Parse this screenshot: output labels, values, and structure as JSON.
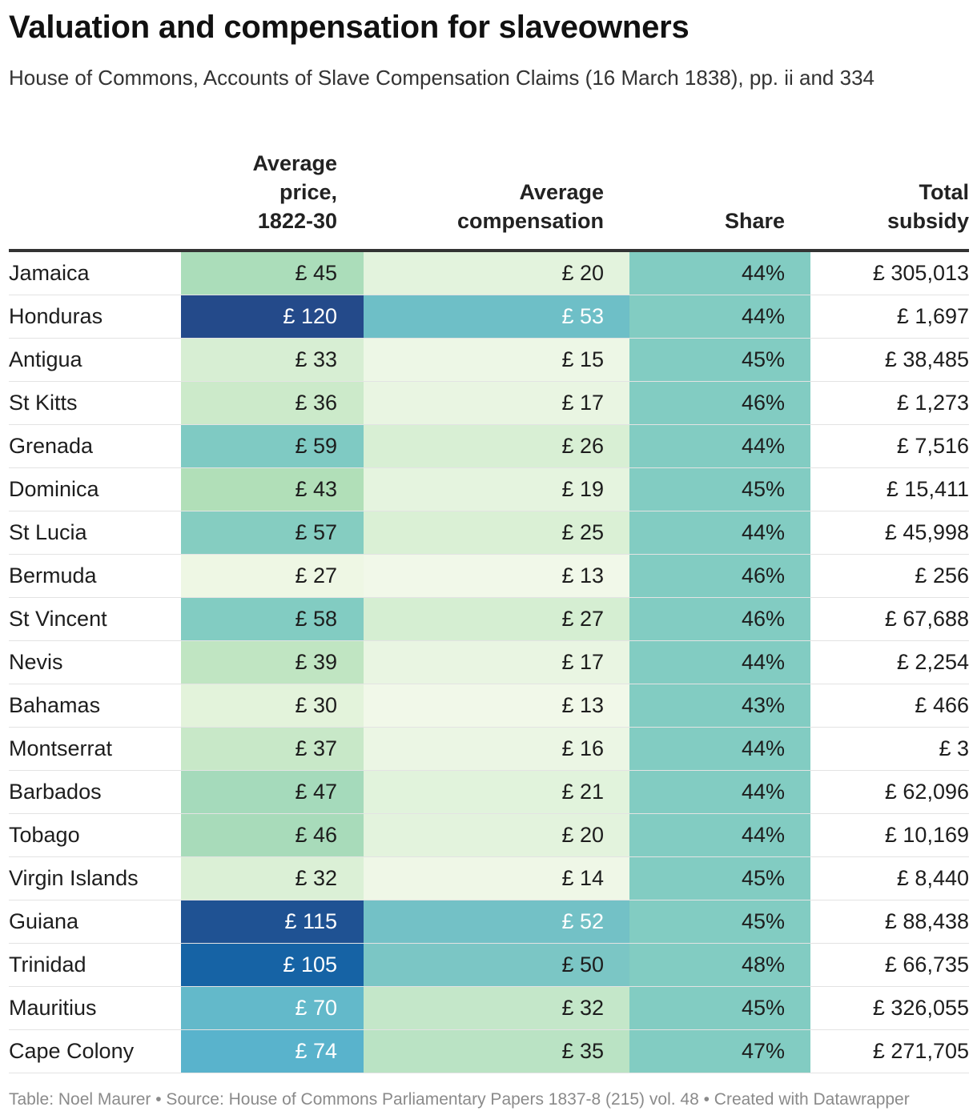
{
  "header": {
    "title": "Valuation and compensation for slaveowners",
    "subtitle": "House of Commons, Accounts of Slave Compensation Claims (16 March 1838), pp. ii and 334"
  },
  "chart_data": {
    "type": "table",
    "columns": [
      {
        "key": "country",
        "label": ""
      },
      {
        "key": "price",
        "label": "Average price, 1822-30",
        "lines": [
          "Average",
          "price,",
          "1822-30"
        ]
      },
      {
        "key": "comp",
        "label": "Average compensation",
        "lines": [
          "Average",
          "compensation"
        ]
      },
      {
        "key": "share",
        "label": "Share",
        "lines": [
          "Share"
        ]
      },
      {
        "key": "subsidy",
        "label": "Total subsidy",
        "lines": [
          "Total",
          "subsidy"
        ]
      }
    ],
    "rows": [
      {
        "country": "Jamaica",
        "price": 45,
        "comp": 20,
        "share": 44,
        "subsidy": 305013
      },
      {
        "country": "Honduras",
        "price": 120,
        "comp": 53,
        "share": 44,
        "subsidy": 1697
      },
      {
        "country": "Antigua",
        "price": 33,
        "comp": 15,
        "share": 45,
        "subsidy": 38485
      },
      {
        "country": "St Kitts",
        "price": 36,
        "comp": 17,
        "share": 46,
        "subsidy": 1273
      },
      {
        "country": "Grenada",
        "price": 59,
        "comp": 26,
        "share": 44,
        "subsidy": 7516
      },
      {
        "country": "Dominica",
        "price": 43,
        "comp": 19,
        "share": 45,
        "subsidy": 15411
      },
      {
        "country": "St Lucia",
        "price": 57,
        "comp": 25,
        "share": 44,
        "subsidy": 45998
      },
      {
        "country": "Bermuda",
        "price": 27,
        "comp": 13,
        "share": 46,
        "subsidy": 256
      },
      {
        "country": "St Vincent",
        "price": 58,
        "comp": 27,
        "share": 46,
        "subsidy": 67688
      },
      {
        "country": "Nevis",
        "price": 39,
        "comp": 17,
        "share": 44,
        "subsidy": 2254
      },
      {
        "country": "Bahamas",
        "price": 30,
        "comp": 13,
        "share": 43,
        "subsidy": 466
      },
      {
        "country": "Montserrat",
        "price": 37,
        "comp": 16,
        "share": 44,
        "subsidy": 3
      },
      {
        "country": "Barbados",
        "price": 47,
        "comp": 21,
        "share": 44,
        "subsidy": 62096
      },
      {
        "country": "Tobago",
        "price": 46,
        "comp": 20,
        "share": 44,
        "subsidy": 10169
      },
      {
        "country": "Virgin Islands",
        "price": 32,
        "comp": 14,
        "share": 45,
        "subsidy": 8440
      },
      {
        "country": "Guiana",
        "price": 115,
        "comp": 52,
        "share": 45,
        "subsidy": 88438
      },
      {
        "country": "Trinidad",
        "price": 105,
        "comp": 50,
        "share": 48,
        "subsidy": 66735
      },
      {
        "country": "Mauritius",
        "price": 70,
        "comp": 32,
        "share": 45,
        "subsidy": 326055
      },
      {
        "country": "Cape Colony",
        "price": 74,
        "comp": 35,
        "share": 47,
        "subsidy": 271705
      }
    ],
    "currency_prefix": "£ ",
    "percent_suffix": "%",
    "color_scale": {
      "price": {
        "domain": [
          27,
          120
        ],
        "stops": [
          "#eef7e4",
          "#b3e0b8",
          "#82ccc2",
          "#5ab4cc",
          "#3c95c6",
          "#1664a6",
          "#244a8a"
        ]
      },
      "comp": {
        "domain": [
          13,
          53
        ],
        "stops": [
          "#f1f8e9",
          "#d7efd3",
          "#aadcbc",
          "#6ebfc7"
        ]
      },
      "share": {
        "color": "#82ccc2"
      }
    },
    "dark_text_color": "#1d1d1d",
    "light_text_color": "#ffffff"
  },
  "footer": {
    "text": "Table: Noel Maurer • Source: House of Commons Parliamentary Papers 1837-8 (215) vol. 48 • Created with Datawrapper"
  }
}
